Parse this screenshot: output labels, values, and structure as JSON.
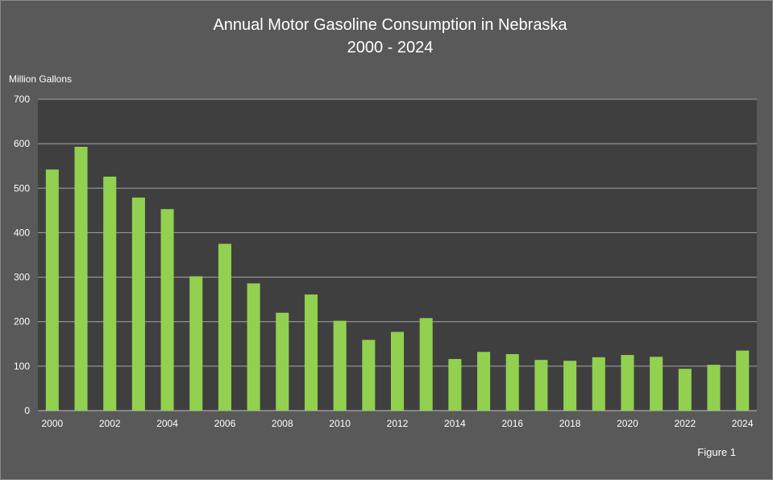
{
  "chart_data": {
    "type": "bar",
    "title": "Annual Motor Gasoline Consumption in Nebraska",
    "subtitle": "2000 - 2024",
    "ylabel": "Million Gallons",
    "xlabel": "",
    "ylim": [
      0,
      700
    ],
    "yticks": [
      "0",
      "100",
      "200",
      "300",
      "400",
      "500",
      "600",
      "700"
    ],
    "categories": [
      "2000",
      "2001",
      "2002",
      "2003",
      "2004",
      "2005",
      "2006",
      "2007",
      "2008",
      "2009",
      "2010",
      "2011",
      "2012",
      "2013",
      "2014",
      "2015",
      "2016",
      "2017",
      "2018",
      "2019",
      "2020",
      "2021",
      "2022",
      "2023",
      "2024"
    ],
    "xtick_labels": [
      "2000",
      "2002",
      "2004",
      "2006",
      "2008",
      "2010",
      "2012",
      "2014",
      "2016",
      "2018",
      "2020",
      "2022",
      "2024"
    ],
    "values": [
      542,
      593,
      526,
      479,
      453,
      302,
      375,
      286,
      220,
      261,
      202,
      159,
      177,
      208,
      116,
      132,
      127,
      114,
      112,
      120,
      125,
      121,
      94,
      103,
      135
    ],
    "grid": true,
    "legend": "none",
    "colors": {
      "background": "#595959",
      "plot_area": "#3f3f3f",
      "bar": "#92d050",
      "gridline": "#a6a6a6",
      "text": "#ffffff"
    }
  },
  "footer": {
    "figure_label": "Figure 1"
  }
}
